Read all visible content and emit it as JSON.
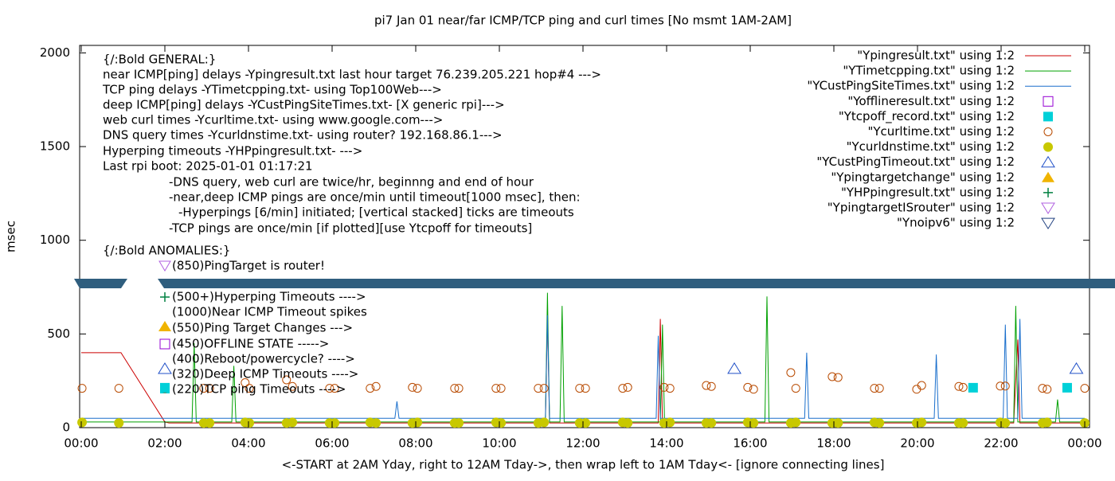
{
  "chart_data": {
    "type": "line",
    "title": "pi7 Jan 01  near/far ICMP/TCP ping and curl times [No msmt 1AM-2AM]",
    "xlabel": "<-START at 2AM Yday, right to 12AM Tday->, then wrap left to 1AM Tday<- [ignore connecting lines]",
    "ylabel": "msec",
    "xlim": [
      0,
      24
    ],
    "xticks": [
      {
        "value": 0,
        "label": "00:00"
      },
      {
        "value": 2,
        "label": "02:00"
      },
      {
        "value": 4,
        "label": "04:00"
      },
      {
        "value": 6,
        "label": "06:00"
      },
      {
        "value": 8,
        "label": "08:00"
      },
      {
        "value": 10,
        "label": "10:00"
      },
      {
        "value": 12,
        "label": "12:00"
      },
      {
        "value": 14,
        "label": "14:00"
      },
      {
        "value": 16,
        "label": "16:00"
      },
      {
        "value": 18,
        "label": "18:00"
      },
      {
        "value": 20,
        "label": "20:00"
      },
      {
        "value": 22,
        "label": "22:00"
      },
      {
        "value": 24,
        "label": "00:00"
      }
    ],
    "ylim": [
      0,
      2040
    ],
    "yticks": [
      0,
      500,
      1000,
      1500,
      2000
    ],
    "annotations": [
      "{/:Bold GENERAL:}",
      "near ICMP[ping] delays -Ypingresult.txt last hour target 76.239.205.221 hop#4 --->",
      "TCP ping delays -YTimetcpping.txt- using Top100Web--->",
      "deep ICMP[ping] delays -YCustPingSiteTimes.txt- [X generic rpi]--->",
      "web curl times -Ycurltime.txt- using www.google.com--->",
      "DNS query times -Ycurldnstime.txt- using router? 192.168.86.1--->",
      "Hyperping timeouts -YHPpingresult.txt- --->",
      "Last rpi boot: 2025-01-01 01:17:21",
      "-DNS query, web curl are twice/hr, beginnng and end of hour",
      "-near,deep ICMP pings are once/min until timeout[1000 msec], then:",
      "-Hyperpings [6/min] initiated; [vertical stacked] ticks are timeouts",
      "-TCP pings are once/min [if plotted][use Ytcpoff for timeouts]",
      "{/:Bold ANOMALIES:}",
      "(850)PingTarget is router!",
      "(500+)Hyperping Timeouts ---->",
      "(1000)Near ICMP Timeout spikes",
      "(550)Ping Target Changes --->",
      "(450)OFFLINE STATE ----->",
      "(400)Reboot/powercycle? ---->",
      "(320)Deep ICMP Timeouts ---->",
      "(220)TCP ping Timeouts ---->"
    ],
    "series": [
      {
        "name": "\"Ypingresult.txt\" using 1:2",
        "color": "#cc0000",
        "style": "line",
        "x": [
          0,
          0.95,
          2.0,
          2.1,
          11.1,
          11.15,
          11.2,
          11.3,
          13.8,
          13.85,
          13.9,
          22.3,
          22.4,
          22.45,
          22.5,
          23.9,
          24
        ],
        "values": [
          400,
          400,
          30,
          25,
          25,
          600,
          25,
          25,
          25,
          580,
          25,
          25,
          470,
          25,
          25,
          25,
          25
        ]
      },
      {
        "name": "\"YTimetcpping.txt\" using 1:2",
        "color": "#00a000",
        "style": "line",
        "x": [
          0,
          2.0,
          2.65,
          2.7,
          2.75,
          3.6,
          3.65,
          3.7,
          11.1,
          11.15,
          11.2,
          11.45,
          11.5,
          11.55,
          13.85,
          13.9,
          13.95,
          16.35,
          16.4,
          16.45,
          22.3,
          22.35,
          22.4,
          23.3,
          23.35,
          23.4,
          24
        ],
        "values": [
          30,
          30,
          30,
          450,
          30,
          30,
          330,
          30,
          30,
          720,
          30,
          30,
          650,
          30,
          30,
          550,
          30,
          30,
          700,
          30,
          30,
          650,
          30,
          30,
          150,
          30,
          30
        ]
      },
      {
        "name": "\"YCustPingSiteTimes.txt\" using 1:2",
        "color": "#1a6fcc",
        "style": "line",
        "x": [
          0,
          2.0,
          2.1,
          7.5,
          7.55,
          7.6,
          11.1,
          11.15,
          11.2,
          13.75,
          13.8,
          13.85,
          17.3,
          17.35,
          17.4,
          20.4,
          20.45,
          20.5,
          22.05,
          22.1,
          22.15,
          22.4,
          22.45,
          22.5,
          24
        ],
        "values": [
          50,
          50,
          50,
          50,
          140,
          50,
          50,
          600,
          50,
          50,
          490,
          50,
          50,
          400,
          50,
          50,
          390,
          50,
          50,
          550,
          50,
          50,
          580,
          50,
          50
        ]
      },
      {
        "name": "\"Yofflineresult.txt\" using 1:2",
        "color": "#9400d3",
        "style": "square-open",
        "x": [],
        "values": []
      },
      {
        "name": "\"Ytcpoff_record.txt\" using 1:2",
        "color": "#00d0d8",
        "style": "square",
        "x": [
          2.0,
          21.33,
          23.58
        ],
        "values": [
          213,
          213,
          213
        ]
      },
      {
        "name": "\"Ycurltime.txt\" using 1:2",
        "color": "#b84a00",
        "style": "circle-open",
        "x": [
          0.02,
          0.9,
          2.93,
          3.07,
          3.92,
          4.02,
          4.91,
          5.05,
          5.94,
          6.06,
          6.91,
          7.05,
          7.92,
          8.04,
          8.93,
          9.03,
          9.92,
          10.04,
          10.93,
          11.07,
          11.92,
          12.06,
          12.95,
          13.07,
          13.94,
          14.08,
          14.95,
          15.07,
          15.94,
          16.08,
          16.97,
          17.09,
          17.96,
          18.1,
          18.97,
          19.09,
          19.98,
          20.1,
          20.99,
          21.09,
          21.98,
          22.1,
          22.99,
          23.1,
          24.0
        ],
        "values": [
          210,
          210,
          210,
          210,
          240,
          210,
          255,
          220,
          210,
          210,
          210,
          220,
          215,
          210,
          210,
          210,
          210,
          210,
          210,
          210,
          210,
          210,
          210,
          215,
          215,
          210,
          225,
          220,
          215,
          205,
          294,
          210,
          272,
          268,
          210,
          210,
          205,
          225,
          220,
          215,
          222,
          222,
          210,
          205,
          210
        ]
      },
      {
        "name": "\"Ycurldnstime.txt\" using 1:2",
        "color": "#c8c800",
        "style": "circle",
        "x": [
          0.02,
          0.9,
          2.93,
          3.07,
          3.92,
          4.02,
          4.91,
          5.05,
          5.94,
          6.06,
          6.91,
          7.05,
          7.92,
          8.04,
          8.93,
          9.03,
          9.92,
          10.04,
          10.93,
          11.07,
          11.92,
          12.06,
          12.95,
          13.07,
          13.94,
          14.08,
          14.95,
          15.07,
          15.94,
          16.08,
          16.97,
          17.09,
          17.96,
          18.1,
          18.97,
          19.09,
          19.98,
          20.1,
          20.99,
          21.09,
          21.98,
          22.1,
          22.99,
          23.1,
          24.0
        ],
        "values": [
          28,
          25,
          25,
          25,
          28,
          25,
          25,
          28,
          25,
          25,
          28,
          25,
          25,
          28,
          25,
          25,
          28,
          25,
          25,
          28,
          25,
          25,
          28,
          25,
          25,
          28,
          25,
          25,
          28,
          25,
          25,
          28,
          25,
          25,
          28,
          25,
          25,
          28,
          25,
          25,
          28,
          25,
          25,
          28,
          25
        ]
      },
      {
        "name": "\"YCustPingTimeout.txt\" using 1:2",
        "color": "#2050c8",
        "style": "triangle-open",
        "x": [
          15.62,
          23.8
        ],
        "values": [
          315,
          315
        ]
      },
      {
        "name": "\"Ypingtargetchange\" using 1:2",
        "color": "#f0b400",
        "style": "triangle",
        "x": [],
        "values": []
      },
      {
        "name": "\"YHPpingresult.txt\" using 1:2",
        "color": "#008040",
        "style": "plus",
        "x": [],
        "values": []
      },
      {
        "name": "\"YpingtargetISrouter\" using 1:2",
        "color": "#b060e0",
        "style": "triangle-down-open",
        "x": [],
        "values": []
      },
      {
        "name": "\"Ynoipv6\" using 1:2",
        "color": "#204080",
        "style": "triangle-down-open",
        "x": [],
        "values": []
      }
    ]
  }
}
